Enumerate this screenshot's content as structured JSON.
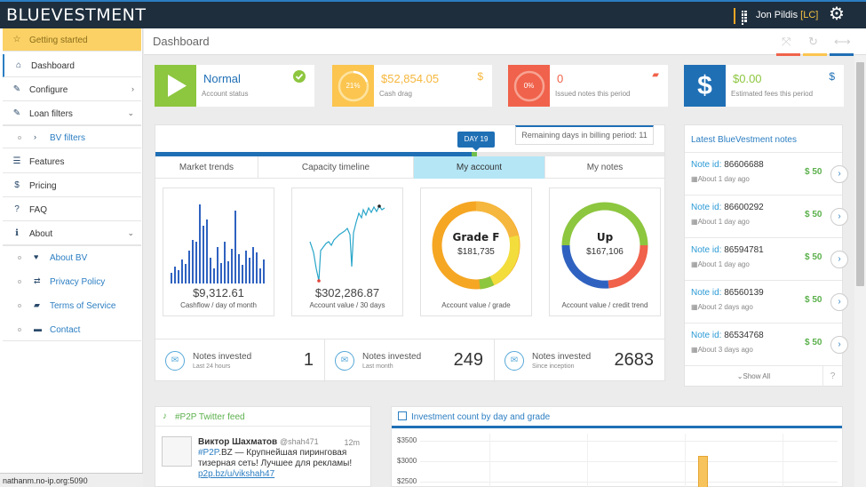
{
  "brand": {
    "logo": "BLUEVESTMENT"
  },
  "user": {
    "name": "Jon Pildis",
    "initials": "[LC]"
  },
  "sidebar": {
    "items": [
      {
        "label": "Getting started",
        "icon": "star-icon"
      },
      {
        "label": "Dashboard",
        "icon": "home-icon"
      },
      {
        "label": "Configure",
        "icon": "wrench-icon"
      },
      {
        "label": "Loan filters",
        "icon": "wrench-icon"
      },
      {
        "label": "BV filters",
        "icon": "chevron-right-icon"
      },
      {
        "label": "Features",
        "icon": "list-icon"
      },
      {
        "label": "Pricing",
        "icon": "dollar-icon"
      },
      {
        "label": "FAQ",
        "icon": "question-icon"
      },
      {
        "label": "About",
        "icon": "info-icon"
      },
      {
        "label": "About BV",
        "icon": "heart-icon"
      },
      {
        "label": "Privacy Policy",
        "icon": "exchange-icon"
      },
      {
        "label": "Terms of Service",
        "icon": "briefcase-icon"
      },
      {
        "label": "Contact",
        "icon": "comment-icon"
      }
    ]
  },
  "status_url": "nathanm.no-ip.org:5090",
  "page": {
    "title": "Dashboard"
  },
  "stats": [
    {
      "value": "Normal",
      "label": "Account status",
      "color": "#8dc63f"
    },
    {
      "value": "$52,854.05",
      "label": "Cash drag",
      "gauge": "21%",
      "color": "#fbc54f"
    },
    {
      "value": "0",
      "label": "Issued notes this period",
      "gauge": "0%",
      "color": "#f0624b"
    },
    {
      "value": "$0.00",
      "label": "Estimated fees this period",
      "color": "#1f6fb5"
    }
  ],
  "billing": {
    "day": "DAY 19",
    "remaining": "Remaining days in billing period: 11",
    "progress": 0.63
  },
  "tabs": [
    "Market trends",
    "Capacity timeline",
    "My account",
    "My notes"
  ],
  "minis": [
    {
      "value": "$9,312.61",
      "caption": "Cashflow / day of month"
    },
    {
      "value": "$302,286.87",
      "caption": "Account value / 30 days"
    },
    {
      "grade": "Grade F",
      "value": "$181,735",
      "caption": "Account value / grade"
    },
    {
      "grade": "Up",
      "value": "$167,106",
      "caption": "Account value / credit trend"
    }
  ],
  "notes_invested": [
    {
      "title": "Notes invested",
      "sub": "Last 24 hours",
      "count": "1"
    },
    {
      "title": "Notes invested",
      "sub": "Last month",
      "count": "249"
    },
    {
      "title": "Notes invested",
      "sub": "Since inception",
      "count": "2683"
    }
  ],
  "latest": {
    "title": "Latest BlueVestment notes",
    "id_label": "Note id:",
    "notes": [
      {
        "id": "86606688",
        "when": "About 1 day ago",
        "amount": "$ 50"
      },
      {
        "id": "86600292",
        "when": "About 1 day ago",
        "amount": "$ 50"
      },
      {
        "id": "86594781",
        "when": "About 1 day ago",
        "amount": "$ 50"
      },
      {
        "id": "86560139",
        "when": "About 2 days ago",
        "amount": "$ 50"
      },
      {
        "id": "86534768",
        "when": "About 3 days ago",
        "amount": "$ 50"
      }
    ],
    "show_all": "Show All",
    "help": "?"
  },
  "twitter": {
    "title": "#P2P Twitter feed",
    "name": "Виктор Шахматов",
    "handle": "@shah471",
    "time": "12m",
    "tag": "#P2P",
    "text": ".BZ — Крупнейшая пиринговая тизерная сеть! Лучшее для рекламы!",
    "link": "p2p.bz/u/vikshah47"
  },
  "investment": {
    "title": "Investment count by day and grade",
    "yticks": [
      "$3500",
      "$3000",
      "$2500"
    ]
  }
}
